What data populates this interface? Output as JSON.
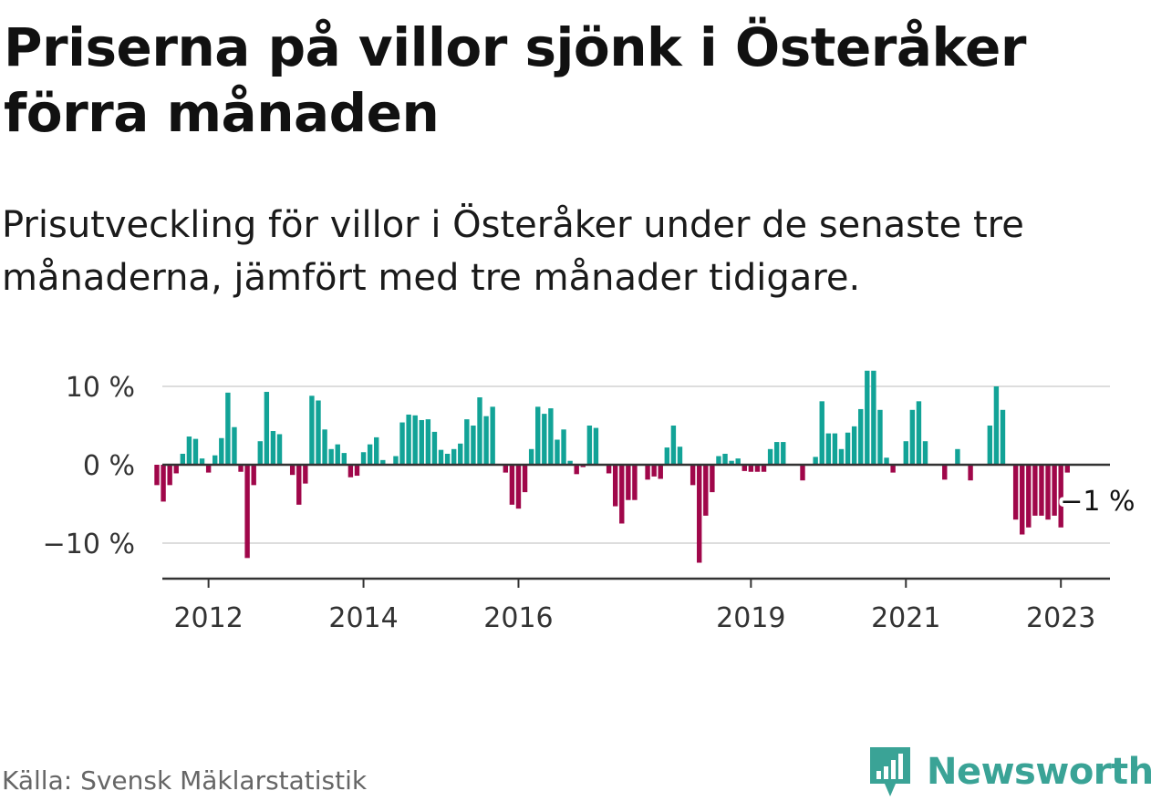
{
  "header": {
    "title": "Priserna på villor sjönk i Österåker förra månaden",
    "subtitle": "Prisutveckling för villor i Österåker under de senaste tre månaderna, jämfört med tre månader tidigare."
  },
  "footer": {
    "source": "Källa: Svensk Mäklarstatistik",
    "brand": "Newsworthy"
  },
  "colors": {
    "positive": "#12a397",
    "negative": "#a0074a",
    "brand": "#3aa396"
  },
  "chart_data": {
    "type": "bar",
    "x_start": {
      "year": 2011,
      "month": 5
    },
    "x_ticks": [
      {
        "label": "2012",
        "year": 2012
      },
      {
        "label": "2014",
        "year": 2014
      },
      {
        "label": "2016",
        "year": 2016
      },
      {
        "label": "2019",
        "year": 2019
      },
      {
        "label": "2021",
        "year": 2021
      },
      {
        "label": "2023",
        "year": 2023
      }
    ],
    "y_ticks": [
      {
        "label": "10 %",
        "value": 10
      },
      {
        "label": "0 %",
        "value": 0
      },
      {
        "label": "−10 %",
        "value": -10
      }
    ],
    "ylim": [
      -14.6,
      12.6
    ],
    "grid": true,
    "annotation": {
      "label": "−1 %",
      "value": -1
    },
    "values": [
      -2.6,
      -4.7,
      -2.6,
      -1.1,
      1.4,
      3.6,
      3.3,
      0.8,
      -1.0,
      1.2,
      3.4,
      9.2,
      4.8,
      -0.9,
      -11.9,
      -2.6,
      3.0,
      9.3,
      4.3,
      3.9,
      0,
      -1.3,
      -5.1,
      -2.4,
      8.8,
      8.2,
      4.5,
      2.0,
      2.6,
      1.5,
      -1.6,
      -1.4,
      1.6,
      2.6,
      3.5,
      0.6,
      0,
      1.1,
      5.4,
      6.4,
      6.3,
      5.7,
      5.8,
      4.2,
      1.9,
      1.4,
      2.0,
      2.7,
      5.8,
      5.0,
      8.6,
      6.2,
      7.4,
      0,
      -1.0,
      -5.1,
      -5.6,
      -3.5,
      2.0,
      7.4,
      6.5,
      7.2,
      3.2,
      4.5,
      0.5,
      -1.2,
      -0.3,
      5.0,
      4.7,
      0,
      -1.1,
      -5.3,
      -7.5,
      -4.5,
      -4.5,
      0,
      -1.9,
      -1.5,
      -1.8,
      2.2,
      5.0,
      2.3,
      0,
      -2.6,
      -12.5,
      -6.5,
      -3.5,
      1.1,
      1.4,
      0.5,
      0.8,
      -0.8,
      -0.9,
      -0.9,
      -0.9,
      2.0,
      2.9,
      2.9,
      0,
      0,
      -2.0,
      0,
      1.0,
      8.1,
      4.0,
      4.0,
      2.0,
      4.1,
      4.9,
      7.1,
      12.0,
      12.0,
      7.0,
      0.9,
      -1.0,
      0,
      3.0,
      7.0,
      8.1,
      3.0,
      0,
      0,
      -1.9,
      0,
      2.0,
      0,
      -2.0,
      0,
      0,
      5.0,
      10.0,
      7.0,
      0,
      -7.0,
      -8.9,
      -8.0,
      -6.5,
      -6.5,
      -7.0,
      -6.5,
      -8.0,
      -1.0
    ]
  }
}
